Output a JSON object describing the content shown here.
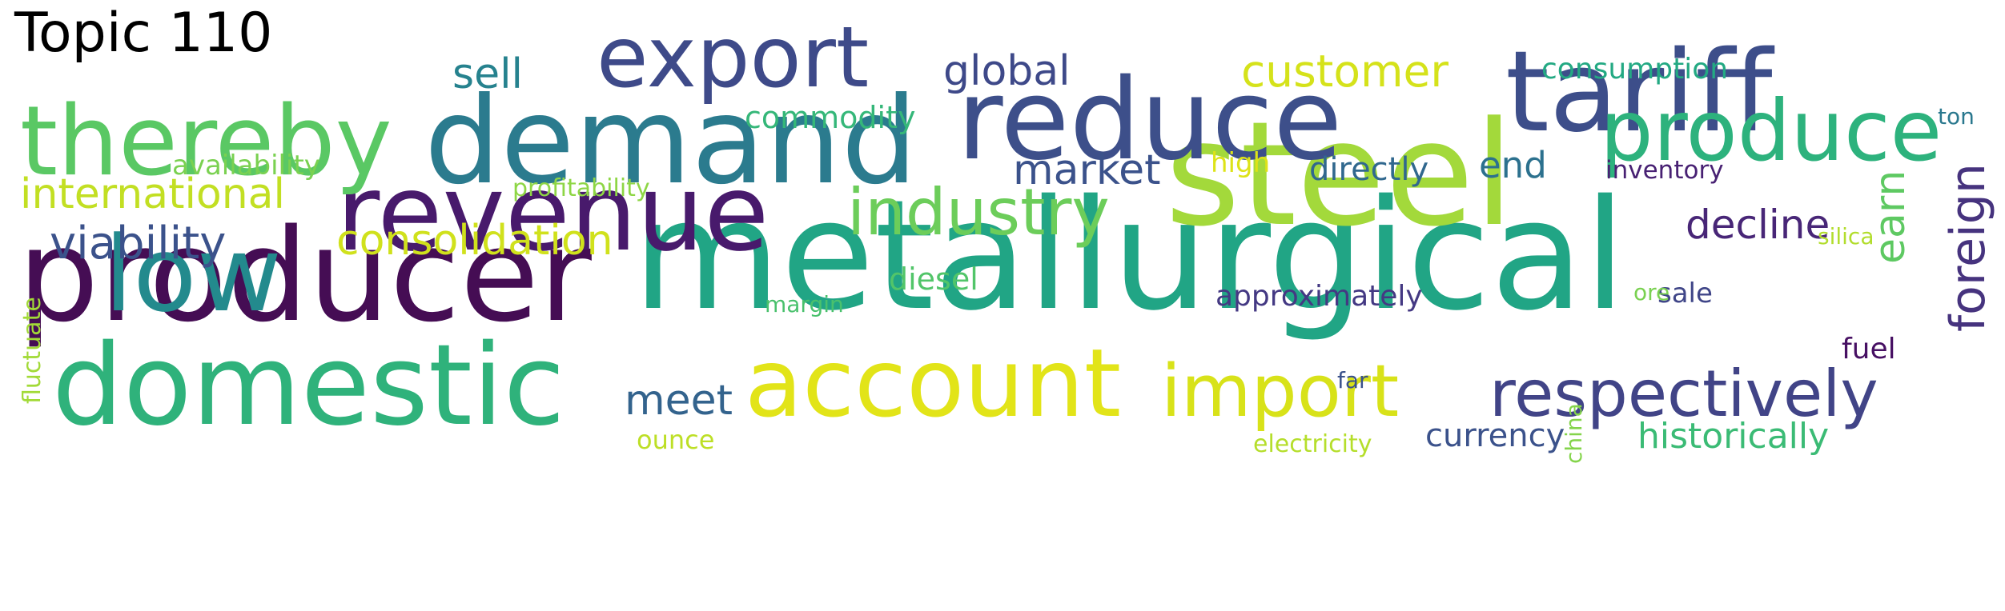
{
  "title": "Topic 110",
  "words": [
    {
      "key": "metallurgical",
      "text": "metallurgical",
      "color": "#21a585"
    },
    {
      "key": "producer",
      "text": "producer",
      "color": "#450d54"
    },
    {
      "key": "steel",
      "text": "steel",
      "color": "#a3d93b"
    },
    {
      "key": "demand",
      "text": "demand",
      "color": "#2b7b8e"
    },
    {
      "key": "reduce",
      "text": "reduce",
      "color": "#3d4f8a"
    },
    {
      "key": "tariff",
      "text": "tariff",
      "color": "#3d4e8a"
    },
    {
      "key": "domestic",
      "text": "domestic",
      "color": "#2fb27b"
    },
    {
      "key": "revenue",
      "text": "revenue",
      "color": "#481a6c"
    },
    {
      "key": "account",
      "text": "account",
      "color": "#e2e418"
    },
    {
      "key": "thereby",
      "text": "thereby",
      "color": "#5ac864"
    },
    {
      "key": "low",
      "text": "low",
      "color": "#238a8d"
    },
    {
      "key": "export",
      "text": "export",
      "color": "#3e4a89"
    },
    {
      "key": "produce",
      "text": "produce",
      "color": "#2db27d"
    },
    {
      "key": "respectively",
      "text": "respectively",
      "color": "#414487"
    },
    {
      "key": "import",
      "text": "import",
      "color": "#d8e219"
    },
    {
      "key": "industry",
      "text": "industry",
      "color": "#6ccd5a"
    },
    {
      "key": "foreign",
      "text": "foreign",
      "color": "#46337e"
    },
    {
      "key": "international",
      "text": "international",
      "color": "#c2df23"
    },
    {
      "key": "viability",
      "text": "viability",
      "color": "#3b528b"
    },
    {
      "key": "consolidation",
      "text": "consolidation",
      "color": "#d0e11c"
    },
    {
      "key": "customer",
      "text": "customer",
      "color": "#d5e21a"
    },
    {
      "key": "decline",
      "text": "decline",
      "color": "#482677"
    },
    {
      "key": "market",
      "text": "market",
      "color": "#3b528b"
    },
    {
      "key": "meet",
      "text": "meet",
      "color": "#33638d"
    },
    {
      "key": "earn",
      "text": "earn",
      "color": "#5ec962"
    },
    {
      "key": "global",
      "text": "global",
      "color": "#3e4989"
    },
    {
      "key": "sell",
      "text": "sell",
      "color": "#26828e"
    },
    {
      "key": "historically",
      "text": "historically",
      "color": "#3bbb75"
    },
    {
      "key": "currency",
      "text": "currency",
      "color": "#3b528b"
    },
    {
      "key": "end",
      "text": "end",
      "color": "#2c718e"
    },
    {
      "key": "directly",
      "text": "directly",
      "color": "#31688e"
    },
    {
      "key": "commodity",
      "text": "commodity",
      "color": "#35b779"
    },
    {
      "key": "consumption",
      "text": "consumption",
      "color": "#23a983"
    },
    {
      "key": "diesel",
      "text": "diesel",
      "color": "#52c569"
    },
    {
      "key": "approximately",
      "text": "approximately",
      "color": "#443983"
    },
    {
      "key": "availability",
      "text": "availability",
      "color": "#7ad151"
    },
    {
      "key": "fuel",
      "text": "fuel",
      "color": "#471063"
    },
    {
      "key": "sale",
      "text": "sale",
      "color": "#404688"
    },
    {
      "key": "inventory",
      "text": "inventory",
      "color": "#482173"
    },
    {
      "key": "high",
      "text": "high",
      "color": "#dde318"
    },
    {
      "key": "profitability",
      "text": "profitability",
      "color": "#8ed645"
    },
    {
      "key": "ounce",
      "text": "ounce",
      "color": "#bddf26"
    },
    {
      "key": "electricity",
      "text": "electricity",
      "color": "#b5de2b"
    },
    {
      "key": "fluctuate",
      "text": "fluctuate",
      "color": "#a2da37"
    },
    {
      "key": "margin",
      "text": "margin",
      "color": "#4ac16d"
    },
    {
      "key": "far",
      "text": "far",
      "color": "#3b528b"
    },
    {
      "key": "china",
      "text": "china",
      "color": "#84d44b"
    },
    {
      "key": "ore",
      "text": "ore",
      "color": "#7ad151"
    },
    {
      "key": "silica",
      "text": "silica",
      "color": "#b2dd2d"
    },
    {
      "key": "ton",
      "text": "ton",
      "color": "#2a788e"
    }
  ]
}
